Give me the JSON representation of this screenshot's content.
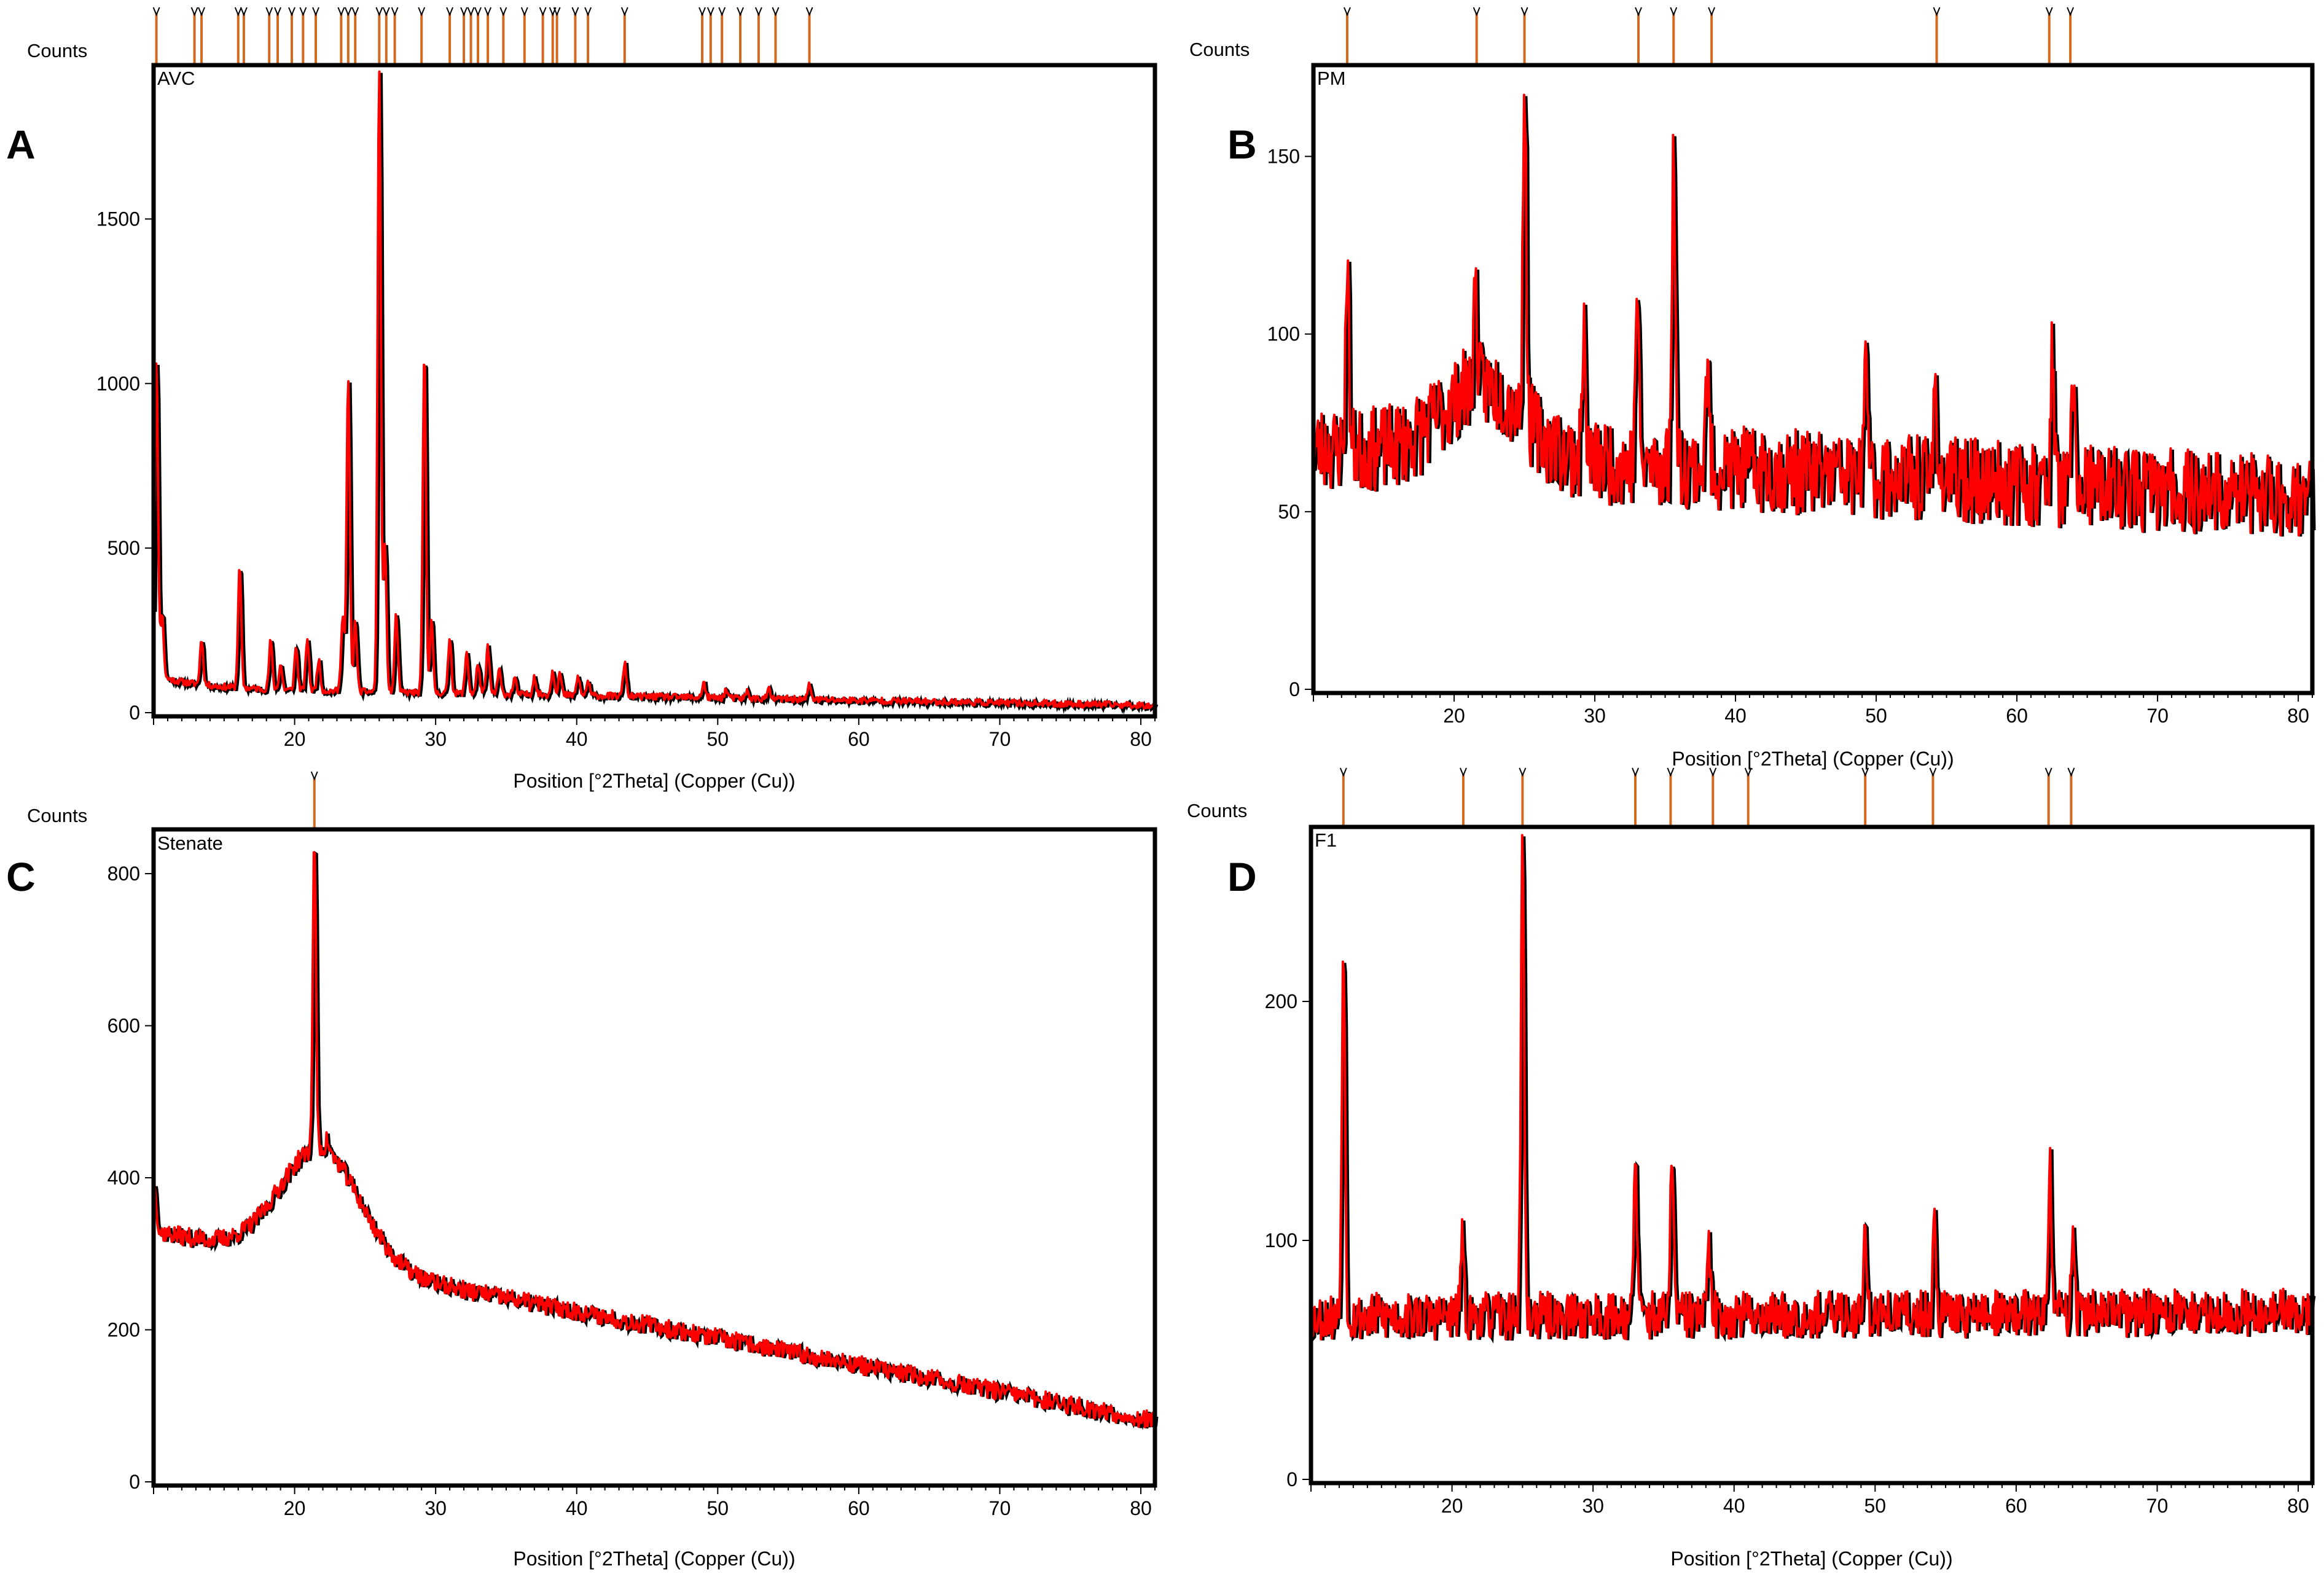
{
  "colors": {
    "trace": "#ff0000",
    "trace_shadow": "#000000",
    "ref_line": "#d2691e",
    "axes": "#000000"
  },
  "chart_data": [
    {
      "type": "line",
      "panel": "A",
      "sample": "AVC",
      "counts_label": "Counts",
      "xlabel": "Position [°2Theta] (Copper (Cu))",
      "xlim": [
        10,
        81
      ],
      "ylim": [
        0,
        1960
      ],
      "xticks": [
        20,
        30,
        40,
        50,
        60,
        70,
        80
      ],
      "yticks": [
        0,
        500,
        1000,
        1500
      ],
      "baseline": {
        "start": 75,
        "end": 22,
        "decay": 40
      },
      "noise": 10,
      "halo": null,
      "peaks": [
        {
          "x": 10.2,
          "y": 1070
        },
        {
          "x": 10.6,
          "y": 300
        },
        {
          "x": 13.4,
          "y": 225
        },
        {
          "x": 16.1,
          "y": 440
        },
        {
          "x": 18.3,
          "y": 220
        },
        {
          "x": 19.0,
          "y": 145
        },
        {
          "x": 20.1,
          "y": 200
        },
        {
          "x": 20.9,
          "y": 225
        },
        {
          "x": 21.7,
          "y": 160
        },
        {
          "x": 23.4,
          "y": 290
        },
        {
          "x": 23.8,
          "y": 1010
        },
        {
          "x": 24.3,
          "y": 280
        },
        {
          "x": 26.0,
          "y": 1960
        },
        {
          "x": 26.4,
          "y": 500
        },
        {
          "x": 27.2,
          "y": 300
        },
        {
          "x": 29.2,
          "y": 1090
        },
        {
          "x": 29.7,
          "y": 280
        },
        {
          "x": 31.0,
          "y": 230
        },
        {
          "x": 32.2,
          "y": 185
        },
        {
          "x": 33.0,
          "y": 150
        },
        {
          "x": 33.7,
          "y": 200
        },
        {
          "x": 34.5,
          "y": 130
        },
        {
          "x": 35.6,
          "y": 105
        },
        {
          "x": 37.0,
          "y": 110
        },
        {
          "x": 38.3,
          "y": 130
        },
        {
          "x": 38.8,
          "y": 120
        },
        {
          "x": 40.1,
          "y": 110
        },
        {
          "x": 40.8,
          "y": 95
        },
        {
          "x": 43.4,
          "y": 150
        },
        {
          "x": 49.0,
          "y": 90
        },
        {
          "x": 50.6,
          "y": 70
        },
        {
          "x": 52.1,
          "y": 65
        },
        {
          "x": 53.6,
          "y": 70
        },
        {
          "x": 56.5,
          "y": 85
        }
      ],
      "ref_lines": [
        10.2,
        12.9,
        13.4,
        16.0,
        16.4,
        18.2,
        18.8,
        19.8,
        20.6,
        21.5,
        23.3,
        23.8,
        24.3,
        26.0,
        26.5,
        27.1,
        29.0,
        31.0,
        32.0,
        32.5,
        33.0,
        33.7,
        34.8,
        36.3,
        37.6,
        38.3,
        38.6,
        39.9,
        40.8,
        43.4,
        48.9,
        49.5,
        50.3,
        51.6,
        52.9,
        54.1,
        56.5
      ]
    },
    {
      "type": "line",
      "panel": "B",
      "sample": "PM",
      "counts_label": "Counts",
      "xlabel": "Position [°2Theta] (Copper (Cu))",
      "xlim": [
        10,
        81
      ],
      "ylim": [
        0,
        175
      ],
      "xticks": [
        20,
        30,
        40,
        50,
        60,
        70,
        80
      ],
      "yticks": [
        0,
        50,
        100,
        150
      ],
      "baseline": {
        "start": 68,
        "end": 54,
        "decay": 0
      },
      "noise": 12,
      "halo": {
        "center": 22,
        "height": 20,
        "width": 4
      },
      "peaks": [
        {
          "x": 12.4,
          "y": 123
        },
        {
          "x": 21.5,
          "y": 115
        },
        {
          "x": 25.0,
          "y": 175
        },
        {
          "x": 29.2,
          "y": 103
        },
        {
          "x": 33.0,
          "y": 115
        },
        {
          "x": 35.6,
          "y": 158
        },
        {
          "x": 38.0,
          "y": 92
        },
        {
          "x": 49.3,
          "y": 97
        },
        {
          "x": 54.2,
          "y": 88
        },
        {
          "x": 62.5,
          "y": 96
        },
        {
          "x": 64.0,
          "y": 86
        }
      ],
      "ref_lines": [
        12.4,
        21.6,
        25.0,
        33.1,
        35.6,
        38.3,
        54.3,
        62.3,
        63.8
      ]
    },
    {
      "type": "line",
      "panel": "C",
      "sample": "Stenate",
      "counts_label": "Counts",
      "xlabel": "Position [°2Theta] (Copper (Cu))",
      "xlim": [
        10,
        81
      ],
      "ylim": [
        0,
        855
      ],
      "xticks": [
        20,
        30,
        40,
        50,
        60,
        70,
        80
      ],
      "yticks": [
        0,
        200,
        400,
        600,
        800
      ],
      "baseline": {
        "start": 330,
        "end": 80,
        "decay": 0
      },
      "noise": 12,
      "halo": {
        "center": 21.8,
        "height": 150,
        "width": 4
      },
      "peaks": [
        {
          "x": 10.1,
          "y": 390
        },
        {
          "x": 21.4,
          "y": 845
        },
        {
          "x": 22.3,
          "y": 450
        }
      ],
      "ref_lines": [
        21.4
      ]
    },
    {
      "type": "line",
      "panel": "D",
      "sample": "F1",
      "counts_label": "Counts",
      "xlabel": "Position [°2Theta] (Copper (Cu))",
      "xlim": [
        10,
        81
      ],
      "ylim": [
        0,
        272
      ],
      "xticks": [
        20,
        30,
        40,
        50,
        60,
        70,
        80
      ],
      "yticks": [
        0,
        100,
        200
      ],
      "baseline": {
        "start": 68,
        "end": 70,
        "decay": 0
      },
      "noise": 10,
      "halo": null,
      "peaks": [
        {
          "x": 12.3,
          "y": 226
        },
        {
          "x": 20.7,
          "y": 100
        },
        {
          "x": 25.0,
          "y": 272
        },
        {
          "x": 33.0,
          "y": 135
        },
        {
          "x": 35.6,
          "y": 140
        },
        {
          "x": 38.2,
          "y": 97
        },
        {
          "x": 49.3,
          "y": 105
        },
        {
          "x": 54.2,
          "y": 110
        },
        {
          "x": 62.4,
          "y": 132
        },
        {
          "x": 64.0,
          "y": 105
        }
      ],
      "ref_lines": [
        12.3,
        20.8,
        25.0,
        33.0,
        35.5,
        38.5,
        41.0,
        49.3,
        54.1,
        62.3,
        63.9
      ]
    }
  ]
}
